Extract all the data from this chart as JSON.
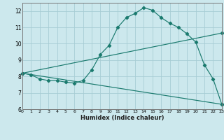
{
  "xlabel": "Humidex (Indice chaleur)",
  "bg_color": "#cce8ed",
  "line_color": "#1a7a6e",
  "grid_color": "#a8cdd4",
  "xlim": [
    0,
    23
  ],
  "ylim": [
    6,
    12.5
  ],
  "xticks": [
    0,
    1,
    2,
    3,
    4,
    5,
    6,
    7,
    8,
    9,
    10,
    11,
    12,
    13,
    14,
    15,
    16,
    17,
    18,
    19,
    20,
    21,
    22,
    23
  ],
  "yticks": [
    6,
    7,
    8,
    9,
    10,
    11,
    12
  ],
  "line1_x": [
    0,
    1,
    2,
    3,
    4,
    5,
    6,
    7,
    8,
    9,
    10,
    11,
    12,
    13,
    14,
    15,
    16,
    17,
    18,
    19,
    20,
    21,
    22,
    23
  ],
  "line1_y": [
    8.2,
    8.1,
    7.85,
    7.75,
    7.75,
    7.65,
    7.6,
    7.75,
    8.4,
    9.35,
    9.9,
    11.0,
    11.6,
    11.85,
    12.2,
    12.05,
    11.6,
    11.25,
    11.0,
    10.6,
    10.1,
    8.7,
    7.85,
    6.3
  ],
  "line2_x": [
    0,
    23
  ],
  "line2_y": [
    8.2,
    10.65
  ],
  "line3_x": [
    0,
    23
  ],
  "line3_y": [
    8.2,
    6.3
  ]
}
